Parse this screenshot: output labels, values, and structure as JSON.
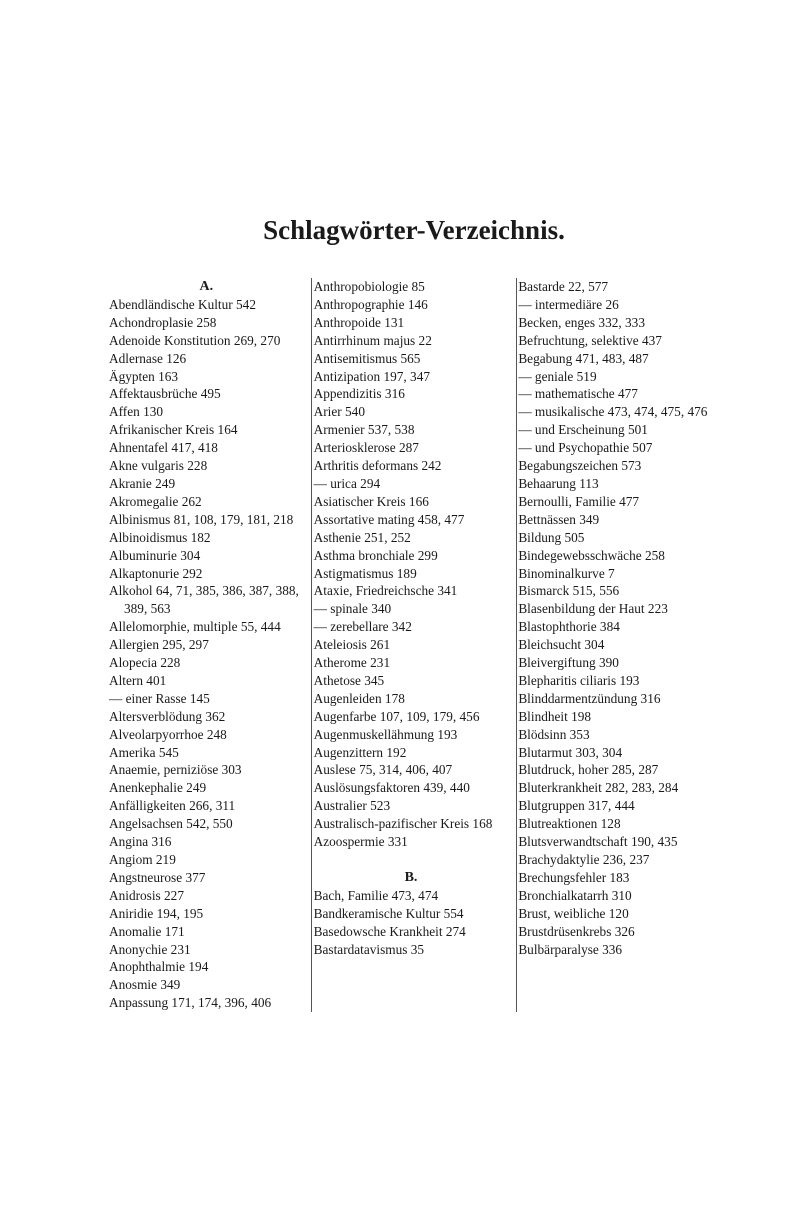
{
  "page": {
    "title": "Schlagwörter-Verzeichnis.",
    "background_color": "#ffffff",
    "text_color": "#1a1a1a",
    "font_family": "serif",
    "title_fontsize": 27,
    "body_fontsize": 13.3,
    "line_height": 17.9,
    "column_count": 3,
    "column_rule_color": "#555555"
  },
  "columns": [
    {
      "blocks": [
        {
          "type": "letter",
          "text": "A."
        },
        {
          "type": "entry",
          "text": "Abendländische Kultur 542"
        },
        {
          "type": "entry",
          "text": "Achondroplasie 258"
        },
        {
          "type": "entry",
          "text": "Adenoide Konstitution 269, 270"
        },
        {
          "type": "entry",
          "text": "Adlernase 126"
        },
        {
          "type": "entry",
          "text": "Ägypten 163"
        },
        {
          "type": "entry",
          "text": "Affektausbrüche 495"
        },
        {
          "type": "entry",
          "text": "Affen 130"
        },
        {
          "type": "entry",
          "text": "Afrikanischer Kreis 164"
        },
        {
          "type": "entry",
          "text": "Ahnentafel 417, 418"
        },
        {
          "type": "entry",
          "text": "Akne vulgaris 228"
        },
        {
          "type": "entry",
          "text": "Akranie 249"
        },
        {
          "type": "entry",
          "text": "Akromegalie 262"
        },
        {
          "type": "entry",
          "text": "Albinismus 81, 108, 179, 181, 218"
        },
        {
          "type": "entry",
          "text": "Albinoidismus 182"
        },
        {
          "type": "entry",
          "text": "Albuminurie 304"
        },
        {
          "type": "entry",
          "text": "Alkaptonurie 292"
        },
        {
          "type": "entry",
          "text": "Alkohol 64, 71, 385, 386, 387, 388, 389, 563"
        },
        {
          "type": "entry",
          "text": "Allelomorphie, multiple 55, 444"
        },
        {
          "type": "entry",
          "text": "Allergien 295, 297"
        },
        {
          "type": "entry",
          "text": "Alopecia 228"
        },
        {
          "type": "entry",
          "text": "Altern 401"
        },
        {
          "type": "entry",
          "text": "— einer Rasse 145"
        },
        {
          "type": "entry",
          "text": "Altersverblödung 362"
        },
        {
          "type": "entry",
          "text": "Alveolarpyorrhoe 248"
        },
        {
          "type": "entry",
          "text": "Amerika 545"
        },
        {
          "type": "entry",
          "text": "Anaemie, perniziöse 303"
        },
        {
          "type": "entry",
          "text": "Anenkephalie 249"
        },
        {
          "type": "entry",
          "text": "Anfälligkeiten 266, 311"
        },
        {
          "type": "entry",
          "text": "Angelsachsen 542, 550"
        },
        {
          "type": "entry",
          "text": "Angina 316"
        },
        {
          "type": "entry",
          "text": "Angiom 219"
        },
        {
          "type": "entry",
          "text": "Angstneurose 377"
        },
        {
          "type": "entry",
          "text": "Anidrosis 227"
        },
        {
          "type": "entry",
          "text": "Aniridie 194, 195"
        },
        {
          "type": "entry",
          "text": "Anomalie 171"
        },
        {
          "type": "entry",
          "text": "Anonychie 231"
        },
        {
          "type": "entry",
          "text": "Anophthalmie 194"
        },
        {
          "type": "entry",
          "text": "Anosmie 349"
        },
        {
          "type": "entry",
          "text": "Anpassung 171, 174, 396, 406"
        }
      ]
    },
    {
      "blocks": [
        {
          "type": "entry",
          "text": "Anthropobiologie 85"
        },
        {
          "type": "entry",
          "text": "Anthropographie 146"
        },
        {
          "type": "entry",
          "text": "Anthropoide 131"
        },
        {
          "type": "entry",
          "text": "Antirrhinum majus 22"
        },
        {
          "type": "entry",
          "text": "Antisemitismus 565"
        },
        {
          "type": "entry",
          "text": "Antizipation 197, 347"
        },
        {
          "type": "entry",
          "text": "Appendizitis 316"
        },
        {
          "type": "entry",
          "text": "Arier 540"
        },
        {
          "type": "entry",
          "text": "Armenier 537, 538"
        },
        {
          "type": "entry",
          "text": "Arteriosklerose 287"
        },
        {
          "type": "entry",
          "text": "Arthritis deformans 242"
        },
        {
          "type": "entry",
          "text": "— urica 294"
        },
        {
          "type": "entry",
          "text": "Asiatischer Kreis 166"
        },
        {
          "type": "entry",
          "text": "Assortative mating 458, 477"
        },
        {
          "type": "entry",
          "text": "Asthenie 251, 252"
        },
        {
          "type": "entry",
          "text": "Asthma bronchiale 299"
        },
        {
          "type": "entry",
          "text": "Astigmatismus 189"
        },
        {
          "type": "entry",
          "text": "Ataxie, Friedreichsche 341"
        },
        {
          "type": "entry",
          "text": "— spinale 340"
        },
        {
          "type": "entry",
          "text": "— zerebellare 342"
        },
        {
          "type": "entry",
          "text": "Ateleiosis 261"
        },
        {
          "type": "entry",
          "text": "Atherome 231"
        },
        {
          "type": "entry",
          "text": "Athetose 345"
        },
        {
          "type": "entry",
          "text": "Augenleiden 178"
        },
        {
          "type": "entry",
          "text": "Augenfarbe 107, 109, 179, 456"
        },
        {
          "type": "entry",
          "text": "Augenmuskellähmung 193"
        },
        {
          "type": "entry",
          "text": "Augenzittern 192"
        },
        {
          "type": "entry",
          "text": "Auslese 75, 314, 406, 407"
        },
        {
          "type": "entry",
          "text": "Auslösungsfaktoren 439, 440"
        },
        {
          "type": "entry",
          "text": "Australier 523"
        },
        {
          "type": "entry",
          "text": "Australisch-pazifischer Kreis 168"
        },
        {
          "type": "entry",
          "text": "Azoospermie 331"
        },
        {
          "type": "spacer"
        },
        {
          "type": "letter",
          "text": "B."
        },
        {
          "type": "entry",
          "text": "Bach, Familie 473, 474"
        },
        {
          "type": "entry",
          "text": "Bandkeramische Kultur 554"
        },
        {
          "type": "entry",
          "text": "Basedowsche Krankheit 274"
        },
        {
          "type": "entry",
          "text": "Bastardatavismus 35"
        }
      ]
    },
    {
      "blocks": [
        {
          "type": "entry",
          "text": "Bastarde 22, 577"
        },
        {
          "type": "entry",
          "text": "— intermediäre 26"
        },
        {
          "type": "entry",
          "text": "Becken, enges 332, 333"
        },
        {
          "type": "entry",
          "text": "Befruchtung, selektive 437"
        },
        {
          "type": "entry",
          "text": "Begabung 471, 483, 487"
        },
        {
          "type": "entry",
          "text": "— geniale 519"
        },
        {
          "type": "entry",
          "text": "— mathematische 477"
        },
        {
          "type": "entry",
          "text": "— musikalische 473, 474, 475, 476"
        },
        {
          "type": "entry",
          "text": "— und Erscheinung 501"
        },
        {
          "type": "entry",
          "text": "— und Psychopathie 507"
        },
        {
          "type": "entry",
          "text": "Begabungszeichen 573"
        },
        {
          "type": "entry",
          "text": "Behaarung 113"
        },
        {
          "type": "entry",
          "text": "Bernoulli, Familie 477"
        },
        {
          "type": "entry",
          "text": "Bettnässen 349"
        },
        {
          "type": "entry",
          "text": "Bildung 505"
        },
        {
          "type": "entry",
          "text": "Bindegewebsschwäche 258"
        },
        {
          "type": "entry",
          "text": "Binominalkurve 7"
        },
        {
          "type": "entry",
          "text": "Bismarck 515, 556"
        },
        {
          "type": "entry",
          "text": "Blasenbildung der Haut 223"
        },
        {
          "type": "entry",
          "text": "Blastophthorie 384"
        },
        {
          "type": "entry",
          "text": "Bleichsucht 304"
        },
        {
          "type": "entry",
          "text": "Bleivergiftung 390"
        },
        {
          "type": "entry",
          "text": "Blepharitis ciliaris 193"
        },
        {
          "type": "entry",
          "text": "Blinddarmentzündung 316"
        },
        {
          "type": "entry",
          "text": "Blindheit 198"
        },
        {
          "type": "entry",
          "text": "Blödsinn 353"
        },
        {
          "type": "entry",
          "text": "Blutarmut 303, 304"
        },
        {
          "type": "entry",
          "text": "Blutdruck, hoher 285, 287"
        },
        {
          "type": "entry",
          "text": "Bluterkrankheit 282, 283, 284"
        },
        {
          "type": "entry",
          "text": "Blutgruppen 317, 444"
        },
        {
          "type": "entry",
          "text": "Blutreaktionen 128"
        },
        {
          "type": "entry",
          "text": "Blutsverwandtschaft 190, 435"
        },
        {
          "type": "entry",
          "text": "Brachydaktylie 236, 237"
        },
        {
          "type": "entry",
          "text": "Brechungsfehler 183"
        },
        {
          "type": "entry",
          "text": "Bronchialkatarrh 310"
        },
        {
          "type": "entry",
          "text": "Brust, weibliche 120"
        },
        {
          "type": "entry",
          "text": "Brustdrüsenkrebs 326"
        },
        {
          "type": "entry",
          "text": "Bulbärparalyse 336"
        }
      ]
    }
  ]
}
